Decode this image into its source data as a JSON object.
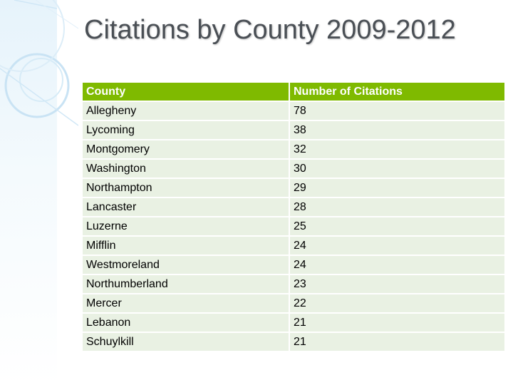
{
  "title": "Citations by County 2009-2012",
  "table": {
    "headers": [
      "County",
      "Number of Citations"
    ],
    "rows": [
      [
        "Allegheny",
        "78"
      ],
      [
        "Lycoming",
        "38"
      ],
      [
        "Montgomery",
        "32"
      ],
      [
        "Washington",
        "30"
      ],
      [
        "Northampton",
        "29"
      ],
      [
        "Lancaster",
        "28"
      ],
      [
        "Luzerne",
        "25"
      ],
      [
        "Mifflin",
        "24"
      ],
      [
        "Westmoreland",
        "24"
      ],
      [
        "Northumberland",
        "23"
      ],
      [
        "Mercer",
        "22"
      ],
      [
        "Lebanon",
        "21"
      ],
      [
        "Schuylkill",
        "21"
      ]
    ]
  },
  "colors": {
    "header_fill": "#7fba00",
    "row_fill": "#e9f1e3",
    "title_text": "#4a4f55",
    "decor_band": "#e6f3fb"
  }
}
